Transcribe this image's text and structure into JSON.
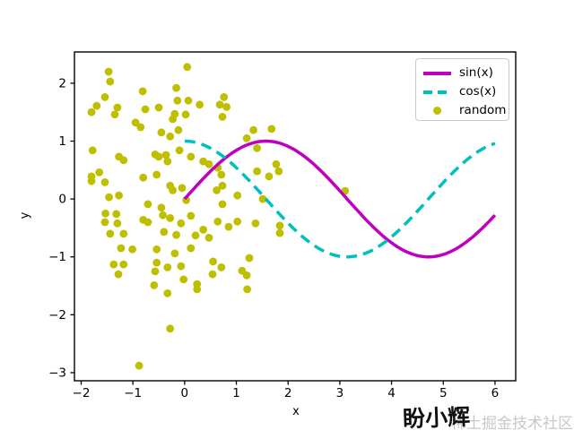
{
  "chart_data": {
    "type": "mixed",
    "title": "",
    "xlabel": "x",
    "ylabel": "y",
    "xlim": [
      -2.13,
      6.4
    ],
    "ylim": [
      -3.14,
      2.54
    ],
    "xticks": [
      -2,
      -1,
      0,
      1,
      2,
      3,
      4,
      5,
      6
    ],
    "yticks": [
      -3,
      -2,
      -1,
      0,
      1,
      2
    ],
    "grid": false,
    "legend_position": "upper right",
    "series": [
      {
        "name": "sin(x)",
        "type": "line",
        "fn": "sin",
        "x_range": [
          0,
          6
        ],
        "color": "#bf00bf",
        "style": "solid",
        "linewidth": 3.5
      },
      {
        "name": "cos(x)",
        "type": "line",
        "fn": "cos",
        "x_range": [
          0,
          6
        ],
        "color": "#00bfbf",
        "style": "dashed",
        "linewidth": 3.5
      },
      {
        "name": "random",
        "type": "scatter",
        "color": "#bfbf00",
        "marker": "circle",
        "marker_radius": 4.4,
        "points": [
          [
            0.05,
            2.28
          ],
          [
            -1.47,
            2.2
          ],
          [
            -1.44,
            2.03
          ],
          [
            -1.54,
            1.76
          ],
          [
            -0.81,
            1.86
          ],
          [
            -0.16,
            1.92
          ],
          [
            -1.7,
            1.61
          ],
          [
            -1.3,
            1.58
          ],
          [
            -1.8,
            1.5
          ],
          [
            -0.14,
            1.7
          ],
          [
            0.07,
            1.7
          ],
          [
            0.29,
            1.63
          ],
          [
            -0.76,
            1.55
          ],
          [
            -0.5,
            1.58
          ],
          [
            -0.19,
            1.47
          ],
          [
            -1.35,
            1.46
          ],
          [
            -0.95,
            1.32
          ],
          [
            -0.85,
            1.24
          ],
          [
            -0.23,
            1.38
          ],
          [
            0.02,
            1.46
          ],
          [
            -0.45,
            1.15
          ],
          [
            -0.28,
            1.08
          ],
          [
            -0.12,
            1.19
          ],
          [
            -1.78,
            0.84
          ],
          [
            -1.27,
            0.73
          ],
          [
            -1.18,
            0.67
          ],
          [
            -0.57,
            0.77
          ],
          [
            -0.5,
            0.73
          ],
          [
            -0.36,
            0.76
          ],
          [
            -0.33,
            0.65
          ],
          [
            -0.1,
            0.84
          ],
          [
            0.12,
            0.73
          ],
          [
            0.36,
            0.65
          ],
          [
            0.47,
            0.6
          ],
          [
            -1.8,
            0.39
          ],
          [
            -1.65,
            0.46
          ],
          [
            -1.8,
            0.31
          ],
          [
            -1.54,
            0.29
          ],
          [
            -0.8,
            0.37
          ],
          [
            -0.54,
            0.42
          ],
          [
            -0.28,
            0.23
          ],
          [
            -0.23,
            0.15
          ],
          [
            -0.05,
            0.19
          ],
          [
            -1.46,
            0.03
          ],
          [
            -1.27,
            0.06
          ],
          [
            -0.71,
            -0.09
          ],
          [
            -0.45,
            -0.15
          ],
          [
            0.03,
            -0.02
          ],
          [
            0.76,
            1.76
          ],
          [
            0.68,
            1.63
          ],
          [
            0.81,
            1.59
          ],
          [
            0.73,
            1.42
          ],
          [
            1.33,
            1.19
          ],
          [
            1.68,
            1.21
          ],
          [
            1.2,
            1.05
          ],
          [
            1.4,
            0.88
          ],
          [
            0.64,
            0.54
          ],
          [
            1.77,
            0.6
          ],
          [
            1.4,
            0.48
          ],
          [
            1.82,
            0.48
          ],
          [
            1.63,
            0.39
          ],
          [
            0.71,
            0.42
          ],
          [
            0.73,
            0.23
          ],
          [
            0.62,
            0.15
          ],
          [
            1.02,
            0.06
          ],
          [
            1.51,
            0.0
          ],
          [
            0.73,
            -0.09
          ],
          [
            3.1,
            0.14
          ],
          [
            -1.53,
            -0.25
          ],
          [
            -1.32,
            -0.26
          ],
          [
            -1.54,
            -0.4
          ],
          [
            -1.3,
            -0.42
          ],
          [
            -0.8,
            -0.36
          ],
          [
            -0.71,
            -0.4
          ],
          [
            -0.42,
            -0.28
          ],
          [
            -0.28,
            -0.33
          ],
          [
            -0.07,
            -0.42
          ],
          [
            0.12,
            -0.29
          ],
          [
            -1.44,
            -0.6
          ],
          [
            -1.18,
            -0.6
          ],
          [
            -0.4,
            -0.57
          ],
          [
            -0.16,
            -0.62
          ],
          [
            0.21,
            -0.63
          ],
          [
            0.36,
            -0.53
          ],
          [
            0.47,
            -0.67
          ],
          [
            -1.23,
            -0.85
          ],
          [
            -1.01,
            -0.87
          ],
          [
            -0.54,
            -0.87
          ],
          [
            -0.19,
            -0.94
          ],
          [
            0.12,
            -0.85
          ],
          [
            0.55,
            -1.08
          ],
          [
            -1.37,
            -1.13
          ],
          [
            -1.18,
            -1.13
          ],
          [
            -0.54,
            -1.1
          ],
          [
            -0.33,
            -1.18
          ],
          [
            -0.07,
            -1.16
          ],
          [
            -1.28,
            -1.3
          ],
          [
            -0.57,
            -1.25
          ],
          [
            0.54,
            -1.3
          ],
          [
            -0.02,
            -1.39
          ],
          [
            0.24,
            -1.47
          ],
          [
            -0.59,
            -1.49
          ],
          [
            -0.33,
            -1.63
          ],
          [
            0.24,
            -1.56
          ],
          [
            -0.28,
            -2.24
          ],
          [
            -0.88,
            -2.88
          ],
          [
            0.64,
            -0.39
          ],
          [
            0.85,
            -0.48
          ],
          [
            1.02,
            -0.39
          ],
          [
            1.37,
            -0.42
          ],
          [
            1.84,
            -0.46
          ],
          [
            1.84,
            -0.59
          ],
          [
            0.71,
            -1.18
          ],
          [
            1.25,
            -1.02
          ],
          [
            1.11,
            -1.24
          ],
          [
            1.2,
            -1.32
          ],
          [
            1.21,
            -1.56
          ]
        ]
      }
    ]
  },
  "colors": {
    "sin_line": "#bf00bf",
    "cos_line": "#00bfbf",
    "scatter": "#bfbf00",
    "axis": "#000000",
    "background": "#ffffff",
    "legend_border": "#c9c9c9",
    "watermark_gray": "#c8c8c8"
  },
  "watermark": {
    "author": "盼小辉",
    "site": "稀土掘金技术社区"
  }
}
